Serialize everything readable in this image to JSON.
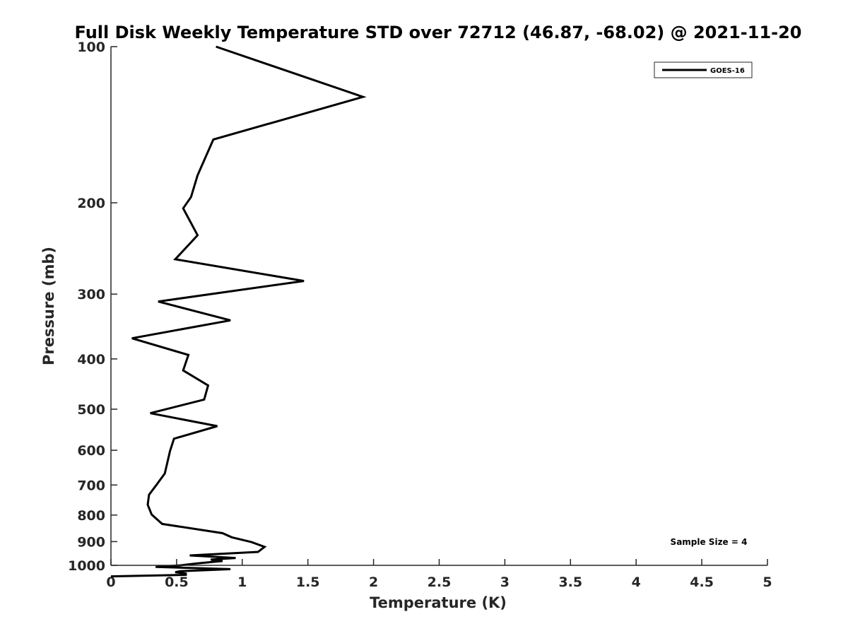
{
  "chart_data": {
    "type": "line",
    "title": "Full Disk Weekly Temperature STD over 72712 (46.87, -68.02) @ 2021-11-20",
    "xlabel": "Temperature (K)",
    "ylabel": "Pressure (mb)",
    "xlim": [
      0,
      5
    ],
    "ylim": [
      100,
      1000
    ],
    "y_scale": "log",
    "y_reversed": true,
    "xticks": [
      "0",
      "0.5",
      "1",
      "1.5",
      "2",
      "2.5",
      "3",
      "3.5",
      "4",
      "4.5",
      "5"
    ],
    "yticks": [
      "100",
      "200",
      "300",
      "400",
      "500",
      "600",
      "700",
      "800",
      "900",
      "1000"
    ],
    "grid": false,
    "legend_position": "top-right",
    "annotation": "Sample Size = 4",
    "line_color": "#000000",
    "series": [
      {
        "name": "GOES-16",
        "points": [
          [
            0.8,
            100
          ],
          [
            1.92,
            125
          ],
          [
            0.78,
            151
          ],
          [
            0.66,
            177
          ],
          [
            0.61,
            195
          ],
          [
            0.55,
            205
          ],
          [
            0.66,
            231
          ],
          [
            0.49,
            257
          ],
          [
            1.47,
            283
          ],
          [
            0.36,
            310
          ],
          [
            0.91,
            337
          ],
          [
            0.16,
            365
          ],
          [
            0.59,
            393
          ],
          [
            0.55,
            421
          ],
          [
            0.74,
            450
          ],
          [
            0.71,
            479
          ],
          [
            0.3,
            509
          ],
          [
            0.81,
            539
          ],
          [
            0.48,
            570
          ],
          [
            0.45,
            602
          ],
          [
            0.43,
            633
          ],
          [
            0.41,
            665
          ],
          [
            0.35,
            698
          ],
          [
            0.29,
            731
          ],
          [
            0.28,
            764
          ],
          [
            0.31,
            798
          ],
          [
            0.39,
            832
          ],
          [
            0.85,
            867
          ],
          [
            0.92,
            883
          ],
          [
            1.07,
            902
          ],
          [
            1.17,
            921
          ],
          [
            1.12,
            942
          ],
          [
            0.6,
            957
          ],
          [
            0.95,
            968
          ],
          [
            0.76,
            975
          ],
          [
            0.85,
            981
          ],
          [
            0.65,
            992
          ],
          [
            0.53,
            1000
          ],
          [
            0.34,
            1007
          ],
          [
            0.91,
            1017
          ],
          [
            0.75,
            1021
          ],
          [
            0.53,
            1026
          ],
          [
            0.49,
            1031
          ],
          [
            0.57,
            1037
          ],
          [
            0.57,
            1043
          ],
          [
            0.0,
            1050
          ]
        ]
      }
    ]
  }
}
